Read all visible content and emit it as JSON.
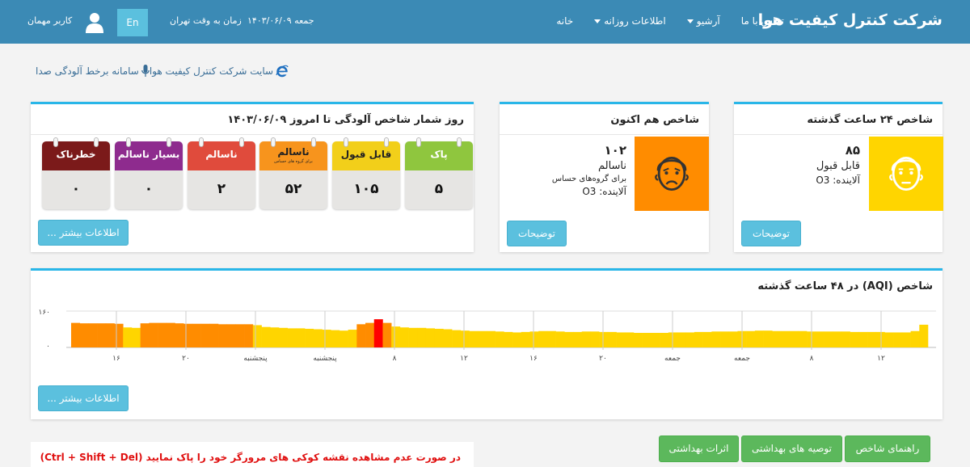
{
  "navbar": {
    "brand": "شرکت کنترل کیفیت هوا",
    "menu": [
      "خانه",
      "اطلاعات روزانه",
      "آرشیو",
      "تماس با ما"
    ],
    "date": "جمعه ۱۴۰۳/۰۶/۰۹",
    "timezone": "زمان به وقت تهران",
    "lang": "En",
    "user": "کاربر مهمان"
  },
  "links": {
    "site": "سایت شرکت کنترل کیفیت هوا",
    "noise": "سامانه برخط آلودگی صدا"
  },
  "past24": {
    "title": "شاخص ۲۴ ساعت گذشته",
    "value": "۸۵",
    "status": "قابل قبول",
    "pollutant": "آلاینده: O3",
    "color": "#ffd500",
    "button": "توضیحات"
  },
  "current": {
    "title": "شاخص هم اکنون",
    "value": "۱۰۲",
    "status": "ناسالم",
    "subtext": "برای گروه‌های حساس",
    "pollutant": "آلاینده: O3",
    "color": "#ff8c00",
    "button": "توضیحات"
  },
  "counter": {
    "title": "روز شمار شاخص آلودگی تا امروز ۱۴۰۳/۰۶/۰۹",
    "cards": [
      {
        "label": "پاک",
        "sub": "",
        "value": "۵",
        "color": "#8fc63e"
      },
      {
        "label": "قابل قبول",
        "sub": "",
        "value": "۱۰۵",
        "color": "#f2cf1a"
      },
      {
        "label": "ناسالم",
        "sub": "برای گروه های حساس",
        "value": "۵۲",
        "color": "#f7941d"
      },
      {
        "label": "ناسالم",
        "sub": "",
        "value": "۲",
        "color": "#e04b3c"
      },
      {
        "label": "بسیار ناسالم",
        "sub": "",
        "value": "۰",
        "color": "#8e2b8e"
      },
      {
        "label": "خطرناک",
        "sub": "",
        "value": "۰",
        "color": "#7b1a1a"
      }
    ],
    "button": "اطلاعات بیشتر ..."
  },
  "chart_panel": {
    "title": "شاخص (AQI) در ۴۸ ساعت گذشته",
    "button": "اطلاعات بیشتر ..."
  },
  "chart_data": {
    "type": "bar",
    "title": "شاخص (AQI) در ۴۸ ساعت گذشته",
    "ylim": [
      0,
      160
    ],
    "yticks": [
      "۰",
      "۱۶۰"
    ],
    "xtick_labels": [
      "۱۶",
      "۲۰",
      "پنجشنبه",
      "پنجشنبه",
      "۸",
      "۱۲",
      "۱۶",
      "۲۰",
      "جمعه",
      "جمعه",
      "۸",
      "۱۲"
    ],
    "values": [
      108,
      106,
      106,
      106,
      106,
      104,
      88,
      86,
      106,
      108,
      108,
      108,
      106,
      104,
      104,
      104,
      104,
      102,
      102,
      102,
      102,
      98,
      90,
      88,
      86,
      84,
      84,
      82,
      80,
      78,
      76,
      74,
      78,
      102,
      108,
      124,
      108,
      92,
      88,
      86,
      86,
      84,
      82,
      80,
      76,
      74,
      72,
      72,
      72,
      70,
      68,
      66,
      68,
      70,
      72,
      72,
      70,
      68,
      68,
      70,
      70,
      68,
      68,
      66,
      66,
      64,
      64,
      64,
      64,
      66,
      66,
      66,
      68,
      68,
      70,
      70,
      70,
      72,
      72,
      74,
      74,
      72,
      72,
      72,
      72,
      70,
      70,
      70,
      70,
      70,
      68,
      68,
      68,
      68,
      66,
      66,
      66,
      72,
      100
    ],
    "colors": {
      "good": "#ffd500",
      "sensitive": "#ff8c00",
      "unhealthy": "#ff0000"
    }
  },
  "bottom": {
    "notice": "در صورت عدم مشاهده نقشه کوکی های مرورگر خود را پاک نمایید (Ctrl + Shift + Del)",
    "buttons": [
      "راهنمای شاخص",
      "توصیه های بهداشتی",
      "اثرات بهداشتی"
    ]
  }
}
